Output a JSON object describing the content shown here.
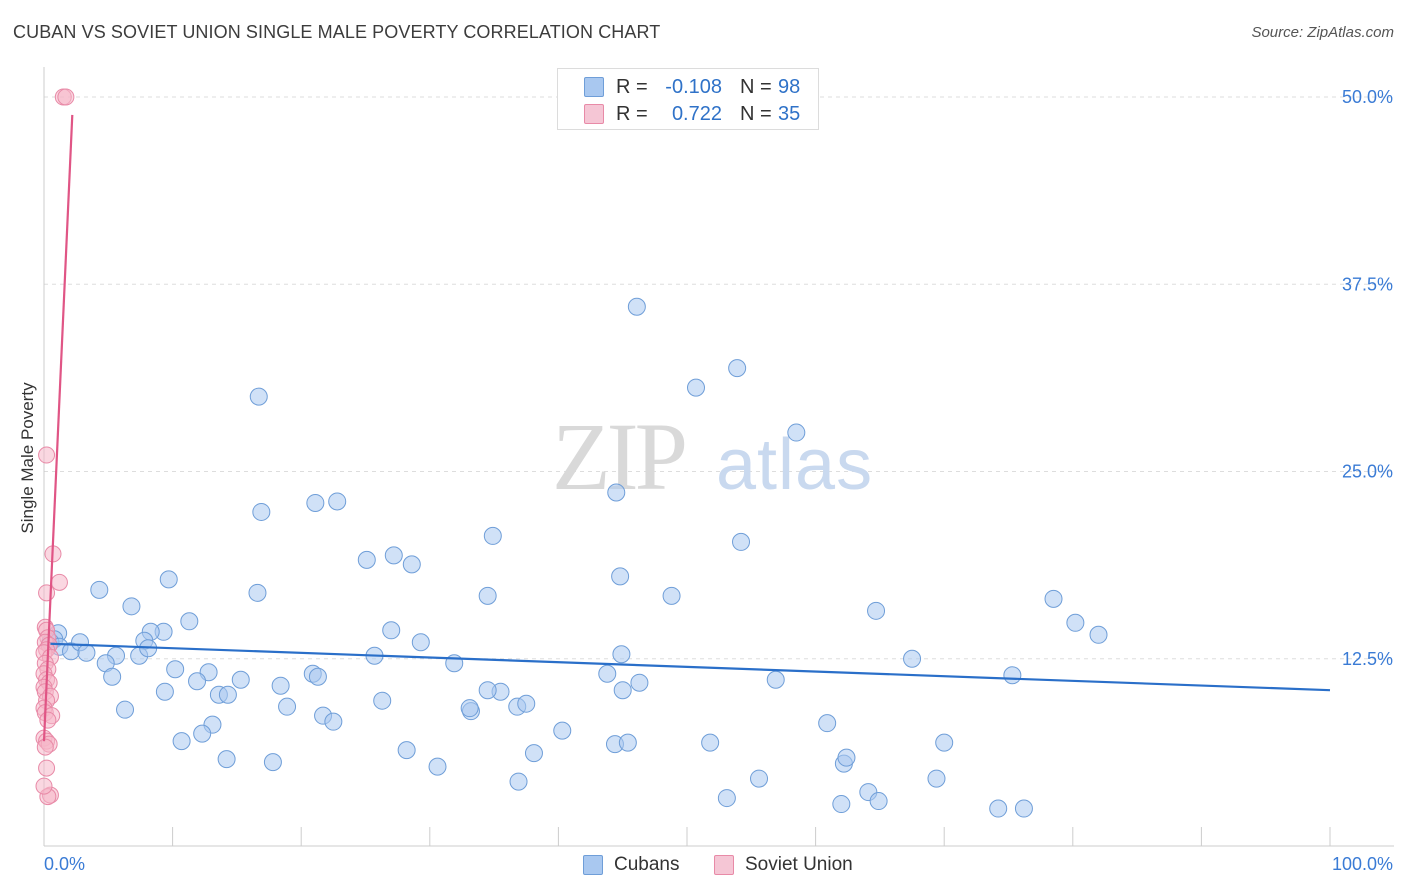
{
  "title": "CUBAN VS SOVIET UNION SINGLE MALE POVERTY CORRELATION CHART",
  "source": "Source: ZipAtlas.com",
  "watermark": {
    "zip": "ZIP",
    "atlas": "atlas"
  },
  "legend": {
    "rows": [
      {
        "r_label": "R =",
        "r_value": "-0.108",
        "n_label": "N =",
        "n_value": "98"
      },
      {
        "r_label": "R =",
        "r_value": "0.722",
        "n_label": "N =",
        "n_value": "35"
      }
    ]
  },
  "bottom_legend": {
    "cubans": "Cubans",
    "soviet": "Soviet Union"
  },
  "colors": {
    "cuban_fill": "#a9c8f0",
    "cuban_stroke": "#6f9ed8",
    "cuban_line": "#2a6fc9",
    "soviet_fill": "#f5b6c9",
    "soviet_stroke": "#e88aa7",
    "soviet_line": "#e05585",
    "tick_blue": "#3a7bd5",
    "grid": "#dddddd"
  },
  "chart_data": {
    "type": "scatter",
    "title": "CUBAN VS SOVIET UNION SINGLE MALE POVERTY CORRELATION CHART",
    "xlabel": "",
    "ylabel": "Single Male Poverty",
    "xlim": [
      0,
      100
    ],
    "ylim": [
      0,
      52
    ],
    "x_tick_labels": [
      "0.0%",
      "100.0%"
    ],
    "y_ticks": [
      12.5,
      25.0,
      37.5,
      50.0
    ],
    "y_tick_labels": [
      "12.5%",
      "25.0%",
      "37.5%",
      "50.0%"
    ],
    "grid": true,
    "series": [
      {
        "name": "Cubans",
        "R": -0.108,
        "N": 98,
        "trend": {
          "x0": 0.5,
          "y0": 13.5,
          "x1": 100,
          "y1": 10.4
        },
        "points": [
          [
            46.1,
            36.0
          ],
          [
            53.9,
            31.9
          ],
          [
            50.7,
            30.6
          ],
          [
            16.7,
            30.0
          ],
          [
            58.5,
            27.6
          ],
          [
            44.5,
            23.6
          ],
          [
            21.1,
            22.9
          ],
          [
            16.9,
            22.3
          ],
          [
            22.8,
            23.0
          ],
          [
            34.9,
            20.7
          ],
          [
            54.2,
            20.3
          ],
          [
            25.1,
            19.1
          ],
          [
            27.2,
            19.4
          ],
          [
            28.6,
            18.8
          ],
          [
            44.8,
            18.0
          ],
          [
            9.7,
            17.8
          ],
          [
            4.3,
            17.1
          ],
          [
            16.6,
            16.9
          ],
          [
            34.5,
            16.7
          ],
          [
            48.8,
            16.7
          ],
          [
            6.8,
            16.0
          ],
          [
            78.5,
            16.5
          ],
          [
            64.7,
            15.7
          ],
          [
            11.3,
            15.0
          ],
          [
            80.2,
            14.9
          ],
          [
            82.0,
            14.1
          ],
          [
            1.1,
            14.2
          ],
          [
            0.8,
            13.8
          ],
          [
            0.5,
            13.6
          ],
          [
            1.2,
            13.3
          ],
          [
            2.1,
            13.0
          ],
          [
            2.8,
            13.6
          ],
          [
            3.3,
            12.9
          ],
          [
            5.6,
            12.7
          ],
          [
            9.3,
            14.3
          ],
          [
            8.3,
            14.3
          ],
          [
            7.8,
            13.7
          ],
          [
            27.0,
            14.4
          ],
          [
            29.3,
            13.6
          ],
          [
            7.4,
            12.7
          ],
          [
            25.7,
            12.7
          ],
          [
            4.8,
            12.2
          ],
          [
            10.2,
            11.8
          ],
          [
            31.9,
            12.2
          ],
          [
            44.9,
            12.8
          ],
          [
            67.5,
            12.5
          ],
          [
            43.8,
            11.5
          ],
          [
            5.3,
            11.3
          ],
          [
            12.8,
            11.6
          ],
          [
            15.3,
            11.1
          ],
          [
            20.9,
            11.5
          ],
          [
            21.3,
            11.3
          ],
          [
            11.9,
            11.0
          ],
          [
            18.4,
            10.7
          ],
          [
            56.9,
            11.1
          ],
          [
            75.3,
            11.4
          ],
          [
            9.4,
            10.3
          ],
          [
            13.6,
            10.1
          ],
          [
            14.3,
            10.1
          ],
          [
            35.5,
            10.3
          ],
          [
            26.3,
            9.7
          ],
          [
            34.5,
            10.4
          ],
          [
            45.0,
            10.4
          ],
          [
            36.8,
            9.3
          ],
          [
            18.9,
            9.3
          ],
          [
            6.3,
            9.1
          ],
          [
            21.7,
            8.7
          ],
          [
            22.5,
            8.3
          ],
          [
            33.2,
            9.0
          ],
          [
            33.1,
            9.2
          ],
          [
            37.5,
            9.5
          ],
          [
            46.3,
            10.9
          ],
          [
            13.1,
            8.1
          ],
          [
            40.3,
            7.7
          ],
          [
            60.9,
            8.2
          ],
          [
            10.7,
            7.0
          ],
          [
            12.3,
            7.5
          ],
          [
            28.2,
            6.4
          ],
          [
            38.1,
            6.2
          ],
          [
            44.4,
            6.8
          ],
          [
            45.4,
            6.9
          ],
          [
            51.8,
            6.9
          ],
          [
            70.0,
            6.9
          ],
          [
            14.2,
            5.8
          ],
          [
            17.8,
            5.6
          ],
          [
            30.6,
            5.3
          ],
          [
            62.2,
            5.5
          ],
          [
            62.4,
            5.9
          ],
          [
            36.9,
            4.3
          ],
          [
            55.6,
            4.5
          ],
          [
            69.4,
            4.5
          ],
          [
            53.1,
            3.2
          ],
          [
            62.0,
            2.8
          ],
          [
            64.1,
            3.6
          ],
          [
            64.9,
            3.0
          ],
          [
            74.2,
            2.5
          ],
          [
            76.2,
            2.5
          ],
          [
            8.1,
            13.2
          ]
        ]
      },
      {
        "name": "Soviet Union",
        "R": 0.722,
        "N": 35,
        "trend": {
          "x0": 0.0,
          "y0": 7.0,
          "x1": 2.2,
          "y1": 48.8
        },
        "points": [
          [
            1.5,
            50.0
          ],
          [
            1.7,
            50.0
          ],
          [
            0.2,
            26.1
          ],
          [
            0.7,
            19.5
          ],
          [
            1.2,
            17.6
          ],
          [
            0.2,
            16.9
          ],
          [
            0.1,
            14.6
          ],
          [
            0.2,
            14.4
          ],
          [
            0.3,
            13.9
          ],
          [
            0.1,
            13.6
          ],
          [
            0.4,
            13.4
          ],
          [
            0.2,
            13.1
          ],
          [
            0.0,
            12.9
          ],
          [
            0.5,
            12.6
          ],
          [
            0.1,
            12.2
          ],
          [
            0.3,
            11.8
          ],
          [
            0.0,
            11.5
          ],
          [
            0.2,
            11.1
          ],
          [
            0.4,
            10.9
          ],
          [
            0.0,
            10.6
          ],
          [
            0.1,
            10.3
          ],
          [
            0.5,
            10.0
          ],
          [
            0.2,
            9.7
          ],
          [
            0.0,
            9.2
          ],
          [
            0.1,
            8.9
          ],
          [
            0.6,
            8.7
          ],
          [
            0.3,
            8.4
          ],
          [
            0.0,
            7.2
          ],
          [
            0.2,
            7.0
          ],
          [
            0.4,
            6.8
          ],
          [
            0.1,
            6.6
          ],
          [
            0.2,
            5.2
          ],
          [
            0.5,
            3.4
          ],
          [
            0.3,
            3.3
          ],
          [
            0.0,
            4.0
          ]
        ]
      }
    ]
  }
}
